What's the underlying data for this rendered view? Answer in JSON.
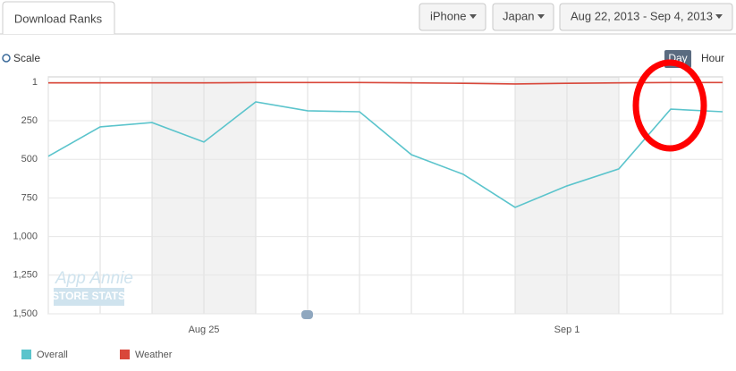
{
  "ui": {
    "tab": "Download Ranks",
    "device": "iPhone",
    "country": "Japan",
    "date_range": "Aug 22, 2013 - Sep 4, 2013",
    "scale": "Scale",
    "day": "Day",
    "hour": "Hour",
    "watermark": [
      "App Annie",
      "STORE STATS"
    ]
  },
  "chart_data": {
    "type": "line",
    "categories": [
      null,
      null,
      null,
      "Aug 25",
      null,
      null,
      null,
      null,
      null,
      null,
      "Sep 1",
      null,
      null,
      null
    ],
    "series": [
      {
        "name": "Overall",
        "color": "#5bc4cc",
        "values": [
          480,
          290,
          262,
          388,
          128,
          186,
          192,
          470,
          597,
          811,
          672,
          562,
          175,
          192
        ]
      },
      {
        "name": "Weather",
        "color": "#d9473a",
        "values": [
          5,
          5,
          5,
          5,
          3,
          3,
          3,
          5,
          8,
          12,
          8,
          5,
          3,
          3
        ]
      }
    ],
    "ylim": [
      1,
      1500
    ],
    "y_inverted": true,
    "yticks": [
      1,
      250,
      500,
      750,
      {
        "value": 1000,
        "label": "1,000"
      },
      {
        "value": 1250,
        "label": "1,250"
      },
      {
        "value": 1500,
        "label": "1,500"
      }
    ],
    "grid": true
  }
}
